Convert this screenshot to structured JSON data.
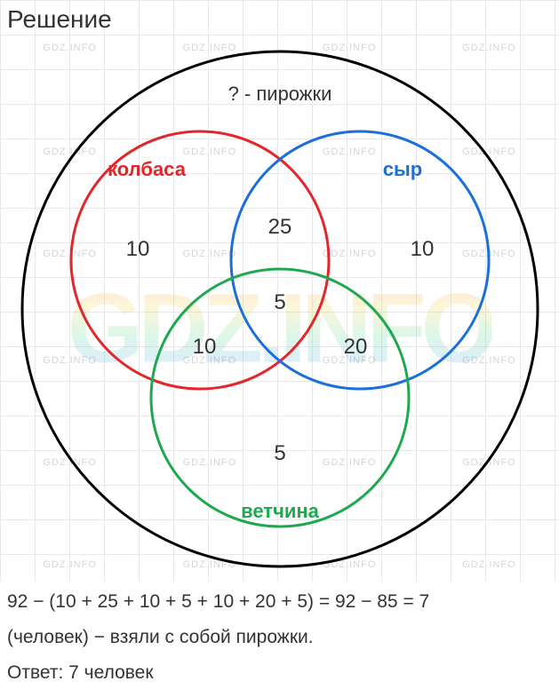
{
  "title": "Решение",
  "watermark_small": "GDZ.INFO",
  "watermark_big": "GDZ.INFO",
  "venn": {
    "type": "venn3",
    "outer_label": "? - пирожки",
    "sets": {
      "A": {
        "label": "колбаса",
        "color": "#e2272a",
        "stroke_width": 3
      },
      "B": {
        "label": "сыр",
        "color": "#1b6fd8",
        "stroke_width": 3
      },
      "C": {
        "label": "ветчина",
        "color": "#1fa94f",
        "stroke_width": 3
      }
    },
    "regions": {
      "A_only": 10,
      "B_only": 10,
      "C_only": 5,
      "AB": 25,
      "AC": 10,
      "BC": 20,
      "ABC": 5
    },
    "outer_circle": {
      "color": "#000000",
      "stroke_width": 3
    },
    "label_fontsize": 22,
    "number_fontsize": 24,
    "number_color": "#333333",
    "background": "#ffffff",
    "grid_color": "#e8e8e8",
    "grid_size": 39
  },
  "equation": "92 − (10 + 25 + 10 + 5 + 10 + 20 + 5) = 92 − 85 = 7",
  "explanation": "(человек) − взяли с собой пирожки.",
  "answer": "Ответ: 7 человек",
  "watermark_rows": [
    48,
    165,
    280,
    400,
    515,
    630
  ]
}
